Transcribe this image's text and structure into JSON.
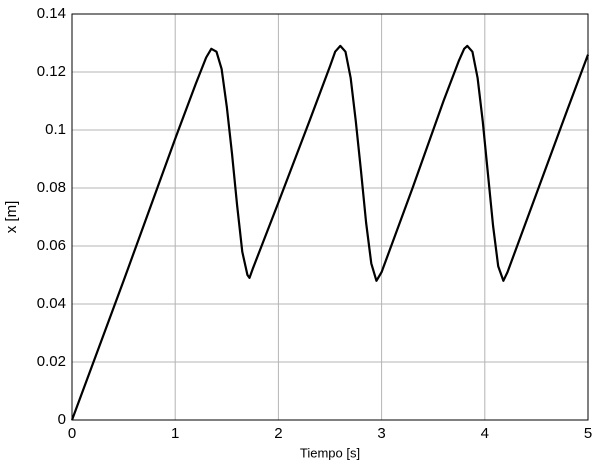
{
  "chart_data": {
    "type": "line",
    "x_label": "Tiempo [s]",
    "y_label": "x [m]",
    "x": [
      0,
      0.5,
      1.0,
      1.2,
      1.3,
      1.35,
      1.4,
      1.45,
      1.5,
      1.55,
      1.6,
      1.65,
      1.7,
      1.72,
      1.75,
      2.0,
      2.3,
      2.5,
      2.55,
      2.6,
      2.65,
      2.7,
      2.75,
      2.8,
      2.85,
      2.9,
      2.95,
      3.0,
      3.3,
      3.6,
      3.75,
      3.8,
      3.83,
      3.88,
      3.93,
      3.98,
      4.03,
      4.08,
      4.13,
      4.18,
      4.22,
      4.5,
      4.8,
      5.0
    ],
    "series": [
      {
        "color": "#000000",
        "values": [
          0,
          0.048,
          0.097,
          0.116,
          0.125,
          0.128,
          0.127,
          0.121,
          0.108,
          0.092,
          0.074,
          0.058,
          0.05,
          0.049,
          0.052,
          0.075,
          0.103,
          0.122,
          0.127,
          0.129,
          0.127,
          0.118,
          0.103,
          0.086,
          0.068,
          0.054,
          0.048,
          0.051,
          0.08,
          0.11,
          0.124,
          0.128,
          0.129,
          0.127,
          0.118,
          0.103,
          0.085,
          0.067,
          0.053,
          0.048,
          0.051,
          0.078,
          0.107,
          0.126
        ]
      }
    ],
    "xlim": [
      0,
      5
    ],
    "xticks": [
      0,
      1,
      2,
      3,
      4,
      5
    ],
    "ylim": [
      0,
      0.14
    ],
    "yticks": [
      0,
      0.02,
      0.04,
      0.06,
      0.08,
      0.1,
      0.12,
      0.14
    ],
    "grid": true
  }
}
